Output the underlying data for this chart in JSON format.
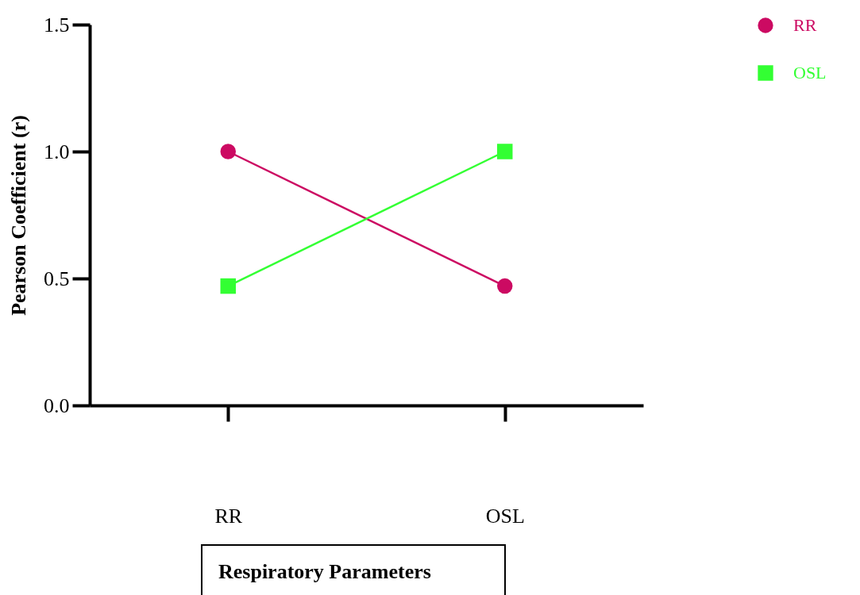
{
  "chart_data": {
    "type": "line",
    "xlabel": "Respiratory Parameters",
    "ylabel": "Pearson Coefficient (r)",
    "categories": [
      "RR",
      "OSL"
    ],
    "series": [
      {
        "name": "RR",
        "color": "#cc0a62",
        "marker": "circle",
        "values": [
          1.0,
          0.47
        ]
      },
      {
        "name": "OSL",
        "color": "#33ff33",
        "marker": "square",
        "values": [
          0.47,
          1.0
        ]
      }
    ],
    "ylim": [
      0,
      1.5
    ],
    "yticks": [
      {
        "value": 0,
        "label": "0.0"
      },
      {
        "value": 0.5,
        "label": "0.5"
      },
      {
        "value": 1,
        "label": "1.0"
      },
      {
        "value": 1.5,
        "label": "1.5"
      }
    ],
    "grid": false,
    "legend": "top right",
    "line_style": "solid"
  }
}
